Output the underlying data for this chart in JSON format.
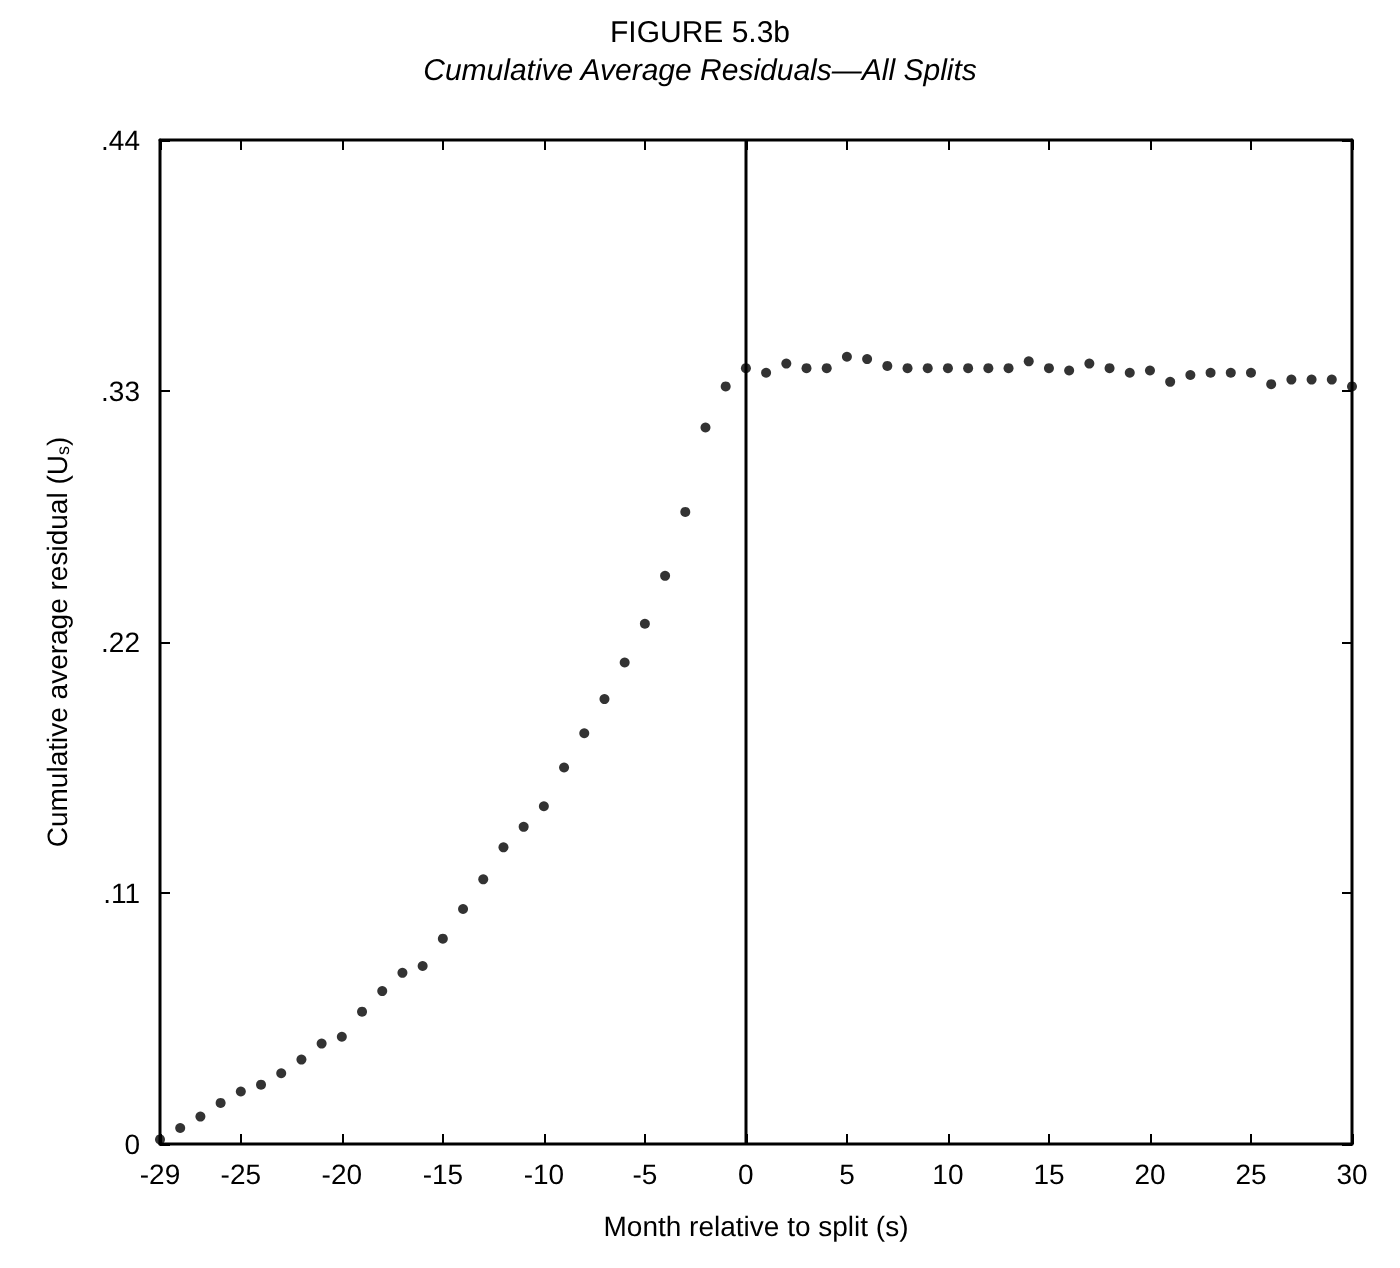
{
  "chart_data": {
    "type": "scatter",
    "title": "FIGURE 5.3b",
    "subtitle": "Cumulative Average Residuals—All Splits",
    "xlabel": "Month relative to split (s)",
    "ylabel": "Cumulative average residual (U$_{s}$)",
    "x": [
      -29,
      -28,
      -27,
      -26,
      -25,
      -24,
      -23,
      -22,
      -21,
      -20,
      -19,
      -18,
      -17,
      -16,
      -15,
      -14,
      -13,
      -12,
      -11,
      -10,
      -9,
      -8,
      -7,
      -6,
      -5,
      -4,
      -3,
      -2,
      -1,
      0,
      1,
      2,
      3,
      4,
      5,
      6,
      7,
      8,
      9,
      10,
      11,
      12,
      13,
      14,
      15,
      16,
      17,
      18,
      19,
      20,
      21,
      22,
      23,
      24,
      25,
      26,
      27,
      28,
      29,
      30
    ],
    "values": [
      0.002,
      0.007,
      0.012,
      0.018,
      0.023,
      0.026,
      0.031,
      0.037,
      0.044,
      0.047,
      0.058,
      0.067,
      0.075,
      0.078,
      0.09,
      0.103,
      0.116,
      0.13,
      0.139,
      0.148,
      0.165,
      0.18,
      0.195,
      0.211,
      0.228,
      0.249,
      0.277,
      0.314,
      0.332,
      0.34,
      0.338,
      0.342,
      0.34,
      0.34,
      0.345,
      0.344,
      0.341,
      0.34,
      0.34,
      0.34,
      0.34,
      0.34,
      0.34,
      0.343,
      0.34,
      0.339,
      0.342,
      0.34,
      0.338,
      0.339,
      0.334,
      0.337,
      0.338,
      0.338,
      0.338,
      0.333,
      0.335,
      0.335,
      0.335,
      0.332
    ],
    "color": "#000000",
    "marker": "circle",
    "xlim": [
      -29,
      30
    ],
    "xticks": [
      -29,
      -25,
      -20,
      -15,
      -10,
      -5,
      0,
      5,
      10,
      15,
      20,
      25,
      30
    ],
    "ylim": [
      0,
      0.44
    ],
    "yticks": [
      0,
      {
        "value": 0.11,
        "label": ".11"
      },
      {
        "value": 0.22,
        "label": ".22"
      },
      {
        "value": 0.33,
        "label": ".33"
      },
      {
        "value": 0.44,
        "label": ".44"
      }
    ],
    "ref_lines": [
      {
        "axis": "x",
        "value": 0,
        "color": "#000000",
        "line_style": "solid"
      }
    ]
  }
}
